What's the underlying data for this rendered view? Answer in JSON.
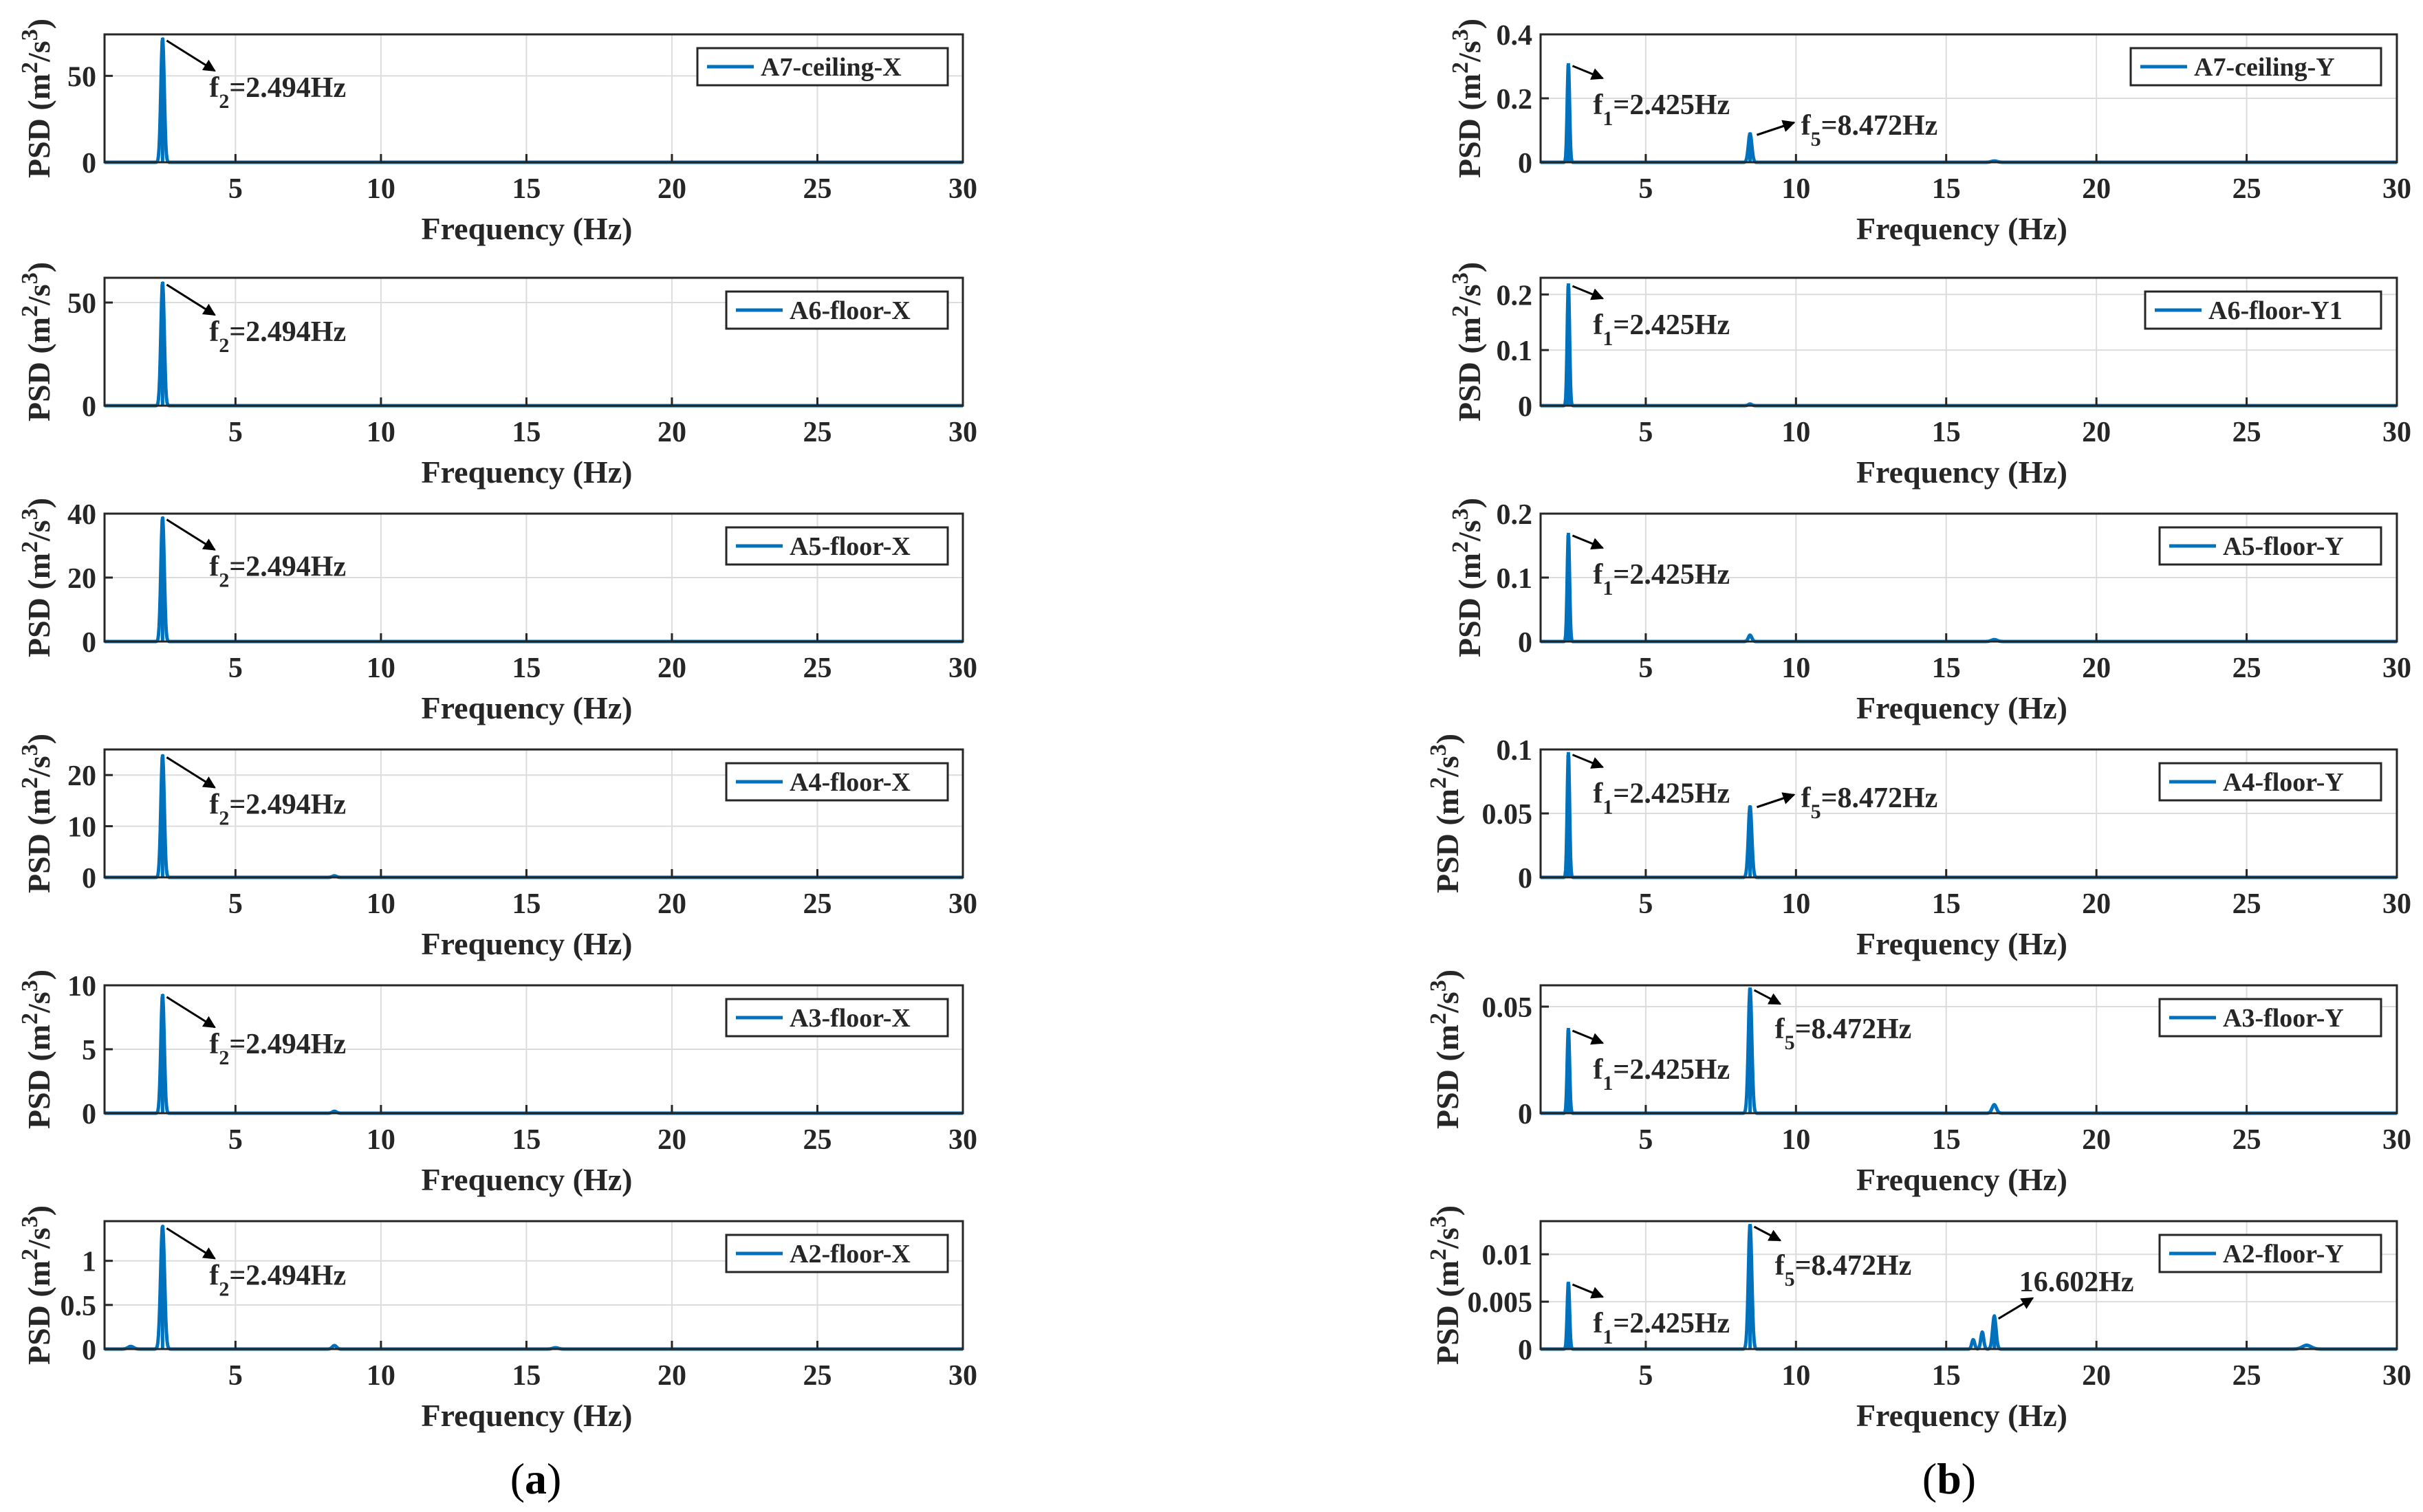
{
  "panel_labels": {
    "left": "a",
    "right": "b"
  },
  "chart_data": [
    {
      "type": "line",
      "panel": "a",
      "title": "",
      "xlabel": "Frequency (Hz)",
      "ylabel": "PSD (m2/s3)",
      "xlim": [
        0.5,
        30
      ],
      "ylim": [
        0,
        74
      ],
      "xticks": [
        5,
        10,
        15,
        20,
        25,
        30
      ],
      "yticks": [
        0,
        50
      ],
      "ytick_labels": [
        "0",
        "50"
      ],
      "legend": "A7-ceiling-X",
      "peaks": [
        {
          "x": 2.494,
          "y": 72,
          "w": 0.12
        }
      ],
      "small_peaks": [],
      "annotations": [
        {
          "label": "f",
          "sub": "2",
          "value": "=2.494Hz",
          "x": 2.494,
          "y": 72
        }
      ],
      "grid": true
    },
    {
      "type": "line",
      "panel": "b",
      "title": "",
      "xlabel": "Frequency (Hz)",
      "ylabel": "PSD (m2/s3)",
      "xlim": [
        1.5,
        30
      ],
      "ylim": [
        0,
        0.4
      ],
      "xticks": [
        5,
        10,
        15,
        20,
        25,
        30
      ],
      "yticks": [
        0,
        0.2,
        0.4
      ],
      "ytick_labels": [
        "0",
        "0.2",
        "0.4"
      ],
      "legend": "A7-ceiling-Y",
      "peaks": [
        {
          "x": 2.425,
          "y": 0.31,
          "w": 0.08
        },
        {
          "x": 8.472,
          "y": 0.09,
          "w": 0.12
        }
      ],
      "small_peaks": [
        {
          "x": 16.6,
          "y": 0.004,
          "w": 0.2
        }
      ],
      "annotations": [
        {
          "label": "f",
          "sub": "1",
          "value": "=2.425Hz",
          "x": 2.425,
          "y": 0.31
        },
        {
          "label": "f",
          "sub": "5",
          "value": "=8.472Hz",
          "x": 8.472,
          "y": 0.09
        }
      ],
      "grid": true
    },
    {
      "type": "line",
      "panel": "a",
      "title": "",
      "xlabel": "Frequency (Hz)",
      "ylabel": "PSD (m2/s3)",
      "xlim": [
        0.5,
        30
      ],
      "ylim": [
        0,
        62
      ],
      "xticks": [
        5,
        10,
        15,
        20,
        25,
        30
      ],
      "yticks": [
        0,
        50
      ],
      "ytick_labels": [
        "0",
        "50"
      ],
      "legend": "A6-floor-X",
      "peaks": [
        {
          "x": 2.494,
          "y": 60,
          "w": 0.12
        }
      ],
      "small_peaks": [],
      "annotations": [
        {
          "label": "f",
          "sub": "2",
          "value": "=2.494Hz",
          "x": 2.494,
          "y": 60
        }
      ],
      "grid": true
    },
    {
      "type": "line",
      "panel": "b",
      "title": "",
      "xlabel": "Frequency (Hz)",
      "ylabel": "PSD (m2/s3)",
      "xlim": [
        1.5,
        30
      ],
      "ylim": [
        0,
        0.23
      ],
      "xticks": [
        5,
        10,
        15,
        20,
        25,
        30
      ],
      "yticks": [
        0,
        0.1,
        0.2
      ],
      "ytick_labels": [
        "0",
        "0.1",
        "0.2"
      ],
      "legend": "A6-floor-Y1",
      "peaks": [
        {
          "x": 2.425,
          "y": 0.22,
          "w": 0.08
        }
      ],
      "small_peaks": [
        {
          "x": 8.472,
          "y": 0.003,
          "w": 0.12
        }
      ],
      "annotations": [
        {
          "label": "f",
          "sub": "1",
          "value": "=2.425Hz",
          "x": 2.425,
          "y": 0.22
        }
      ],
      "grid": true
    },
    {
      "type": "line",
      "panel": "a",
      "title": "",
      "xlabel": "Frequency (Hz)",
      "ylabel": "PSD (m2/s3)",
      "xlim": [
        0.5,
        30
      ],
      "ylim": [
        0,
        40
      ],
      "xticks": [
        5,
        10,
        15,
        20,
        25,
        30
      ],
      "yticks": [
        0,
        20,
        40
      ],
      "ytick_labels": [
        "0",
        "20",
        "40"
      ],
      "legend": "A5-floor-X",
      "peaks": [
        {
          "x": 2.494,
          "y": 39,
          "w": 0.12
        }
      ],
      "small_peaks": [],
      "annotations": [
        {
          "label": "f",
          "sub": "2",
          "value": "=2.494Hz",
          "x": 2.494,
          "y": 39
        }
      ],
      "grid": true
    },
    {
      "type": "line",
      "panel": "b",
      "title": "",
      "xlabel": "Frequency (Hz)",
      "ylabel": "PSD (m2/s3)",
      "xlim": [
        1.5,
        30
      ],
      "ylim": [
        0,
        0.2
      ],
      "xticks": [
        5,
        10,
        15,
        20,
        25,
        30
      ],
      "yticks": [
        0,
        0.1,
        0.2
      ],
      "ytick_labels": [
        "0",
        "0.1",
        "0.2"
      ],
      "legend": "A5-floor-Y",
      "peaks": [
        {
          "x": 2.425,
          "y": 0.17,
          "w": 0.08
        }
      ],
      "small_peaks": [
        {
          "x": 8.472,
          "y": 0.01,
          "w": 0.12
        },
        {
          "x": 16.6,
          "y": 0.003,
          "w": 0.2
        }
      ],
      "annotations": [
        {
          "label": "f",
          "sub": "1",
          "value": "=2.425Hz",
          "x": 2.425,
          "y": 0.17
        }
      ],
      "grid": true
    },
    {
      "type": "line",
      "panel": "a",
      "title": "",
      "xlabel": "Frequency (Hz)",
      "ylabel": "PSD (m2/s3)",
      "xlim": [
        0.5,
        30
      ],
      "ylim": [
        0,
        25
      ],
      "xticks": [
        5,
        10,
        15,
        20,
        25,
        30
      ],
      "yticks": [
        0,
        10,
        20
      ],
      "ytick_labels": [
        "0",
        "10",
        "20"
      ],
      "legend": "A4-floor-X",
      "peaks": [
        {
          "x": 2.494,
          "y": 24,
          "w": 0.12
        }
      ],
      "small_peaks": [
        {
          "x": 8.4,
          "y": 0.3,
          "w": 0.15
        }
      ],
      "annotations": [
        {
          "label": "f",
          "sub": "2",
          "value": "=2.494Hz",
          "x": 2.494,
          "y": 24
        }
      ],
      "grid": true
    },
    {
      "type": "line",
      "panel": "b",
      "title": "",
      "xlabel": "Frequency (Hz)",
      "ylabel": "PSD (m2/s3)",
      "xlim": [
        1.5,
        30
      ],
      "ylim": [
        0,
        0.1
      ],
      "xticks": [
        5,
        10,
        15,
        20,
        25,
        30
      ],
      "yticks": [
        0,
        0.05,
        0.1
      ],
      "ytick_labels": [
        "0",
        "0.05",
        "0.1"
      ],
      "legend": "A4-floor-Y",
      "peaks": [
        {
          "x": 2.425,
          "y": 0.098,
          "w": 0.08
        },
        {
          "x": 8.472,
          "y": 0.056,
          "w": 0.12
        }
      ],
      "small_peaks": [],
      "annotations": [
        {
          "label": "f",
          "sub": "1",
          "value": "=2.425Hz",
          "x": 2.425,
          "y": 0.098
        },
        {
          "label": "f",
          "sub": "5",
          "value": "=8.472Hz",
          "x": 8.472,
          "y": 0.056
        }
      ],
      "grid": true
    },
    {
      "type": "line",
      "panel": "a",
      "title": "",
      "xlabel": "Frequency (Hz)",
      "ylabel": "PSD (m2/s3)",
      "xlim": [
        0.5,
        30
      ],
      "ylim": [
        0,
        10
      ],
      "xticks": [
        5,
        10,
        15,
        20,
        25,
        30
      ],
      "yticks": [
        0,
        5,
        10
      ],
      "ytick_labels": [
        "0",
        "5",
        "10"
      ],
      "legend": "A3-floor-X",
      "peaks": [
        {
          "x": 2.494,
          "y": 9.3,
          "w": 0.12
        }
      ],
      "small_peaks": [
        {
          "x": 8.4,
          "y": 0.15,
          "w": 0.15
        }
      ],
      "annotations": [
        {
          "label": "f",
          "sub": "2",
          "value": "=2.494Hz",
          "x": 2.494,
          "y": 9.3
        }
      ],
      "grid": true
    },
    {
      "type": "line",
      "panel": "b",
      "title": "",
      "xlabel": "Frequency (Hz)",
      "ylabel": "PSD (m2/s3)",
      "xlim": [
        1.5,
        30
      ],
      "ylim": [
        0,
        0.06
      ],
      "xticks": [
        5,
        10,
        15,
        20,
        25,
        30
      ],
      "yticks": [
        0,
        0.05
      ],
      "ytick_labels": [
        "0",
        "0.05"
      ],
      "legend": "A3-floor-Y",
      "peaks": [
        {
          "x": 2.425,
          "y": 0.04,
          "w": 0.08
        },
        {
          "x": 8.472,
          "y": 0.059,
          "w": 0.12
        }
      ],
      "small_peaks": [
        {
          "x": 16.6,
          "y": 0.004,
          "w": 0.15
        }
      ],
      "annotations": [
        {
          "label": "f",
          "sub": "1",
          "value": "=2.425Hz",
          "x": 2.425,
          "y": 0.04
        },
        {
          "label": "f",
          "sub": "5",
          "value": "=8.472Hz",
          "x": 8.472,
          "y": 0.059
        }
      ],
      "grid": true
    },
    {
      "type": "line",
      "panel": "a",
      "title": "",
      "xlabel": "Frequency (Hz)",
      "ylabel": "PSD (m2/s3)",
      "xlim": [
        0.5,
        30
      ],
      "ylim": [
        0,
        1.45
      ],
      "xticks": [
        5,
        10,
        15,
        20,
        25,
        30
      ],
      "yticks": [
        0,
        0.5,
        1
      ],
      "ytick_labels": [
        "0",
        "0.5",
        "1"
      ],
      "legend": "A2-floor-X",
      "peaks": [
        {
          "x": 2.494,
          "y": 1.4,
          "w": 0.14
        }
      ],
      "small_peaks": [
        {
          "x": 1.4,
          "y": 0.03,
          "w": 0.2
        },
        {
          "x": 8.4,
          "y": 0.04,
          "w": 0.15
        },
        {
          "x": 16,
          "y": 0.015,
          "w": 0.2
        }
      ],
      "annotations": [
        {
          "label": "f",
          "sub": "2",
          "value": "=2.494Hz",
          "x": 2.494,
          "y": 1.4
        }
      ],
      "grid": true
    },
    {
      "type": "line",
      "panel": "b",
      "title": "",
      "xlabel": "Frequency (Hz)",
      "ylabel": "PSD (m2/s3)",
      "xlim": [
        1.5,
        30
      ],
      "ylim": [
        0,
        0.0135
      ],
      "xticks": [
        5,
        10,
        15,
        20,
        25,
        30
      ],
      "yticks": [
        0,
        0.005,
        0.01
      ],
      "ytick_labels": [
        "0",
        "0.005",
        "0.01"
      ],
      "legend": "A2-floor-Y",
      "peaks": [
        {
          "x": 2.425,
          "y": 0.0071,
          "w": 0.08
        },
        {
          "x": 8.472,
          "y": 0.0132,
          "w": 0.12
        },
        {
          "x": 16.602,
          "y": 0.0035,
          "w": 0.12
        }
      ],
      "small_peaks": [
        {
          "x": 15.9,
          "y": 0.001,
          "w": 0.1
        },
        {
          "x": 16.2,
          "y": 0.0018,
          "w": 0.1
        },
        {
          "x": 27,
          "y": 0.0004,
          "w": 0.3
        }
      ],
      "annotations": [
        {
          "label": "f",
          "sub": "1",
          "value": "=2.425Hz",
          "x": 2.425,
          "y": 0.0071
        },
        {
          "label": "f",
          "sub": "5",
          "value": "=8.472Hz",
          "x": 8.472,
          "y": 0.0132
        },
        {
          "label": "",
          "sub": "",
          "value": "16.602Hz",
          "x": 16.602,
          "y": 0.0035
        }
      ],
      "grid": true
    }
  ]
}
